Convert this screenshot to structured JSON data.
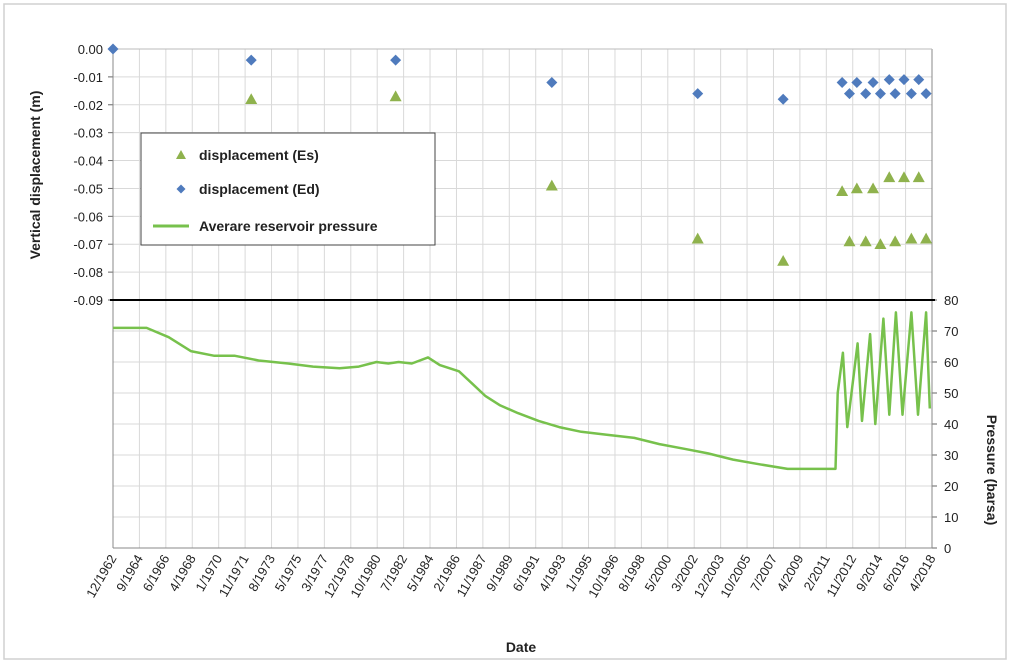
{
  "chart_data": {
    "type": "scatter",
    "title": "",
    "xlabel": "Date",
    "ylabel_top": "Vertical displacement (m)",
    "ylabel_right": "Pressure  (barsa)",
    "x_tick_labels": [
      "12/1962",
      "9/1964",
      "6/1966",
      "4/1968",
      "1/1970",
      "11/1971",
      "8/1973",
      "5/1975",
      "3/1977",
      "12/1978",
      "10/1980",
      "7/1982",
      "5/1984",
      "2/1986",
      "11/1987",
      "9/1989",
      "6/1991",
      "4/1993",
      "1/1995",
      "10/1996",
      "8/1998",
      "5/2000",
      "3/2002",
      "12/2003",
      "10/2005",
      "7/2007",
      "4/2009",
      "2/2011",
      "11/2012",
      "9/2014",
      "6/2016",
      "4/2018"
    ],
    "y_top_ticks": [
      "0.00",
      "-0.01",
      "-0.02",
      "-0.03",
      "-0.04",
      "-0.05",
      "-0.06",
      "-0.07",
      "-0.08",
      "-0.09"
    ],
    "y_right_ticks": [
      "80",
      "70",
      "60",
      "50",
      "40",
      "30",
      "20",
      "10",
      "0"
    ],
    "ylim_top": [
      -0.09,
      0.0
    ],
    "ylim_right": [
      0,
      80
    ],
    "xlim": [
      1962.92,
      2018.5
    ],
    "grid": true,
    "legend_position": "upper-left",
    "legend": [
      {
        "label": "displacement (Es)",
        "marker": "triangle",
        "color": "#8fb24d"
      },
      {
        "label": "displacement (Ed)",
        "marker": "diamond",
        "color": "#4f7bbd"
      },
      {
        "label": "Averare reservoir pressure",
        "marker": "line",
        "color": "#77c14c"
      }
    ],
    "series": [
      {
        "name": "displacement (Es)",
        "axis": "top",
        "points": [
          [
            1972.3,
            -0.018
          ],
          [
            1982.1,
            -0.017
          ],
          [
            1992.7,
            -0.049
          ],
          [
            2002.6,
            -0.068
          ],
          [
            2008.4,
            -0.076
          ],
          [
            2012.4,
            -0.051
          ],
          [
            2012.9,
            -0.069
          ],
          [
            2013.4,
            -0.05
          ],
          [
            2014.0,
            -0.069
          ],
          [
            2014.5,
            -0.05
          ],
          [
            2015.0,
            -0.07
          ],
          [
            2015.6,
            -0.046
          ],
          [
            2016.0,
            -0.069
          ],
          [
            2016.6,
            -0.046
          ],
          [
            2017.1,
            -0.068
          ],
          [
            2017.6,
            -0.046
          ],
          [
            2018.1,
            -0.068
          ]
        ]
      },
      {
        "name": "displacement (Ed)",
        "axis": "top",
        "points": [
          [
            1962.92,
            0.0
          ],
          [
            1972.3,
            -0.004
          ],
          [
            1982.1,
            -0.004
          ],
          [
            1992.7,
            -0.012
          ],
          [
            2002.6,
            -0.016
          ],
          [
            2008.4,
            -0.018
          ],
          [
            2012.4,
            -0.012
          ],
          [
            2012.9,
            -0.016
          ],
          [
            2013.4,
            -0.012
          ],
          [
            2014.0,
            -0.016
          ],
          [
            2014.5,
            -0.012
          ],
          [
            2015.0,
            -0.016
          ],
          [
            2015.6,
            -0.011
          ],
          [
            2016.0,
            -0.016
          ],
          [
            2016.6,
            -0.011
          ],
          [
            2017.1,
            -0.016
          ],
          [
            2017.6,
            -0.011
          ],
          [
            2018.1,
            -0.016
          ]
        ]
      },
      {
        "name": "Averare reservoir pressure",
        "axis": "right",
        "type": "line",
        "points": [
          [
            1962.92,
            71
          ],
          [
            1965.2,
            71
          ],
          [
            1966.7,
            68
          ],
          [
            1968.2,
            63.5
          ],
          [
            1969.8,
            62
          ],
          [
            1971.2,
            62
          ],
          [
            1972.8,
            60.5
          ],
          [
            1974.8,
            59.5
          ],
          [
            1976.5,
            58.5
          ],
          [
            1978.3,
            58
          ],
          [
            1979.6,
            58.5
          ],
          [
            1980.8,
            60
          ],
          [
            1981.6,
            59.5
          ],
          [
            1982.3,
            60
          ],
          [
            1983.2,
            59.5
          ],
          [
            1984.3,
            61.5
          ],
          [
            1985.1,
            59
          ],
          [
            1986.4,
            57
          ],
          [
            1987.3,
            53
          ],
          [
            1988.2,
            49
          ],
          [
            1989.2,
            46
          ],
          [
            1990.4,
            43.5
          ],
          [
            1991.8,
            41
          ],
          [
            1993.2,
            39
          ],
          [
            1994.7,
            37.5
          ],
          [
            1996.5,
            36.5
          ],
          [
            1998.3,
            35.5
          ],
          [
            2000.0,
            33.5
          ],
          [
            2001.7,
            32
          ],
          [
            2003.3,
            30.5
          ],
          [
            2005.0,
            28.5
          ],
          [
            2006.8,
            27
          ],
          [
            2008.7,
            25.5
          ],
          [
            2010.5,
            25.5
          ],
          [
            2011.95,
            25.5
          ],
          [
            2012.1,
            50
          ],
          [
            2012.45,
            63
          ],
          [
            2012.75,
            39
          ],
          [
            2013.45,
            66
          ],
          [
            2013.75,
            41
          ],
          [
            2014.3,
            69
          ],
          [
            2014.65,
            40
          ],
          [
            2015.2,
            74
          ],
          [
            2015.6,
            43
          ],
          [
            2016.05,
            76
          ],
          [
            2016.5,
            43
          ],
          [
            2017.1,
            76
          ],
          [
            2017.55,
            43
          ],
          [
            2018.1,
            76
          ],
          [
            2018.35,
            45
          ]
        ]
      }
    ]
  }
}
